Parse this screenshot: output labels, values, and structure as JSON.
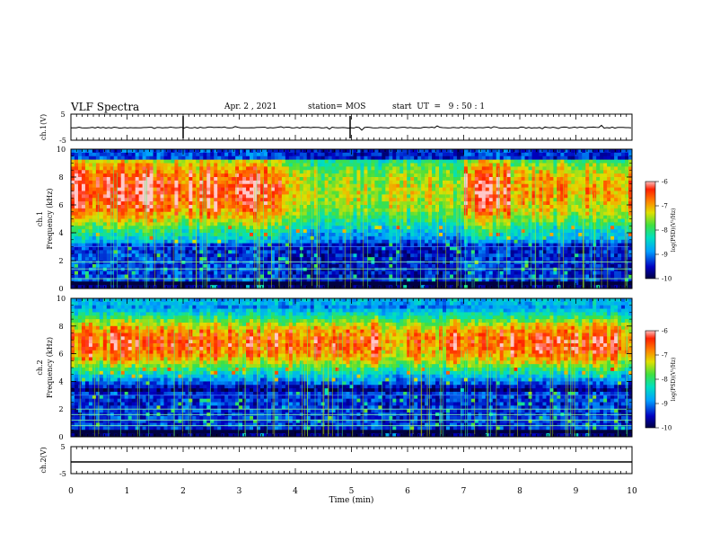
{
  "header": {
    "title": "VLF Spectra",
    "date": "Apr. 2 , 2021",
    "station": "station= MOS",
    "start": "start  UT  =   9 : 50 : 1"
  },
  "chart_data": [
    {
      "type": "line",
      "panel": "waveform-top",
      "ylabel": "ch.1(V)",
      "ylim": [
        -5,
        5
      ],
      "yticks": [
        "5",
        "-5"
      ],
      "level": 0,
      "color": "#000000"
    },
    {
      "type": "heatmap",
      "panel": "spectrogram-ch1",
      "ylabel": "ch.1\nFrequency (kHz)",
      "ylim": [
        0,
        10
      ],
      "yticks": [
        "0",
        "2",
        "4",
        "6",
        "8",
        "10"
      ],
      "colorbar": {
        "label": "log(PSD)(V²/Hz)",
        "range": [
          -10,
          -6
        ],
        "ticks": [
          "-10",
          "-9",
          "-8",
          "-7",
          "-6"
        ]
      },
      "intense_band_khz": [
        4.5,
        9.5
      ],
      "weak_band_khz": [
        0.5,
        2.5
      ],
      "high_activity_min": [
        0,
        3.5
      ],
      "low_activity_min": [
        4.0,
        7.0
      ]
    },
    {
      "type": "heatmap",
      "panel": "spectrogram-ch2",
      "ylabel": "ch.2\nFrequency (kHz)",
      "ylim": [
        0,
        10
      ],
      "yticks": [
        "0",
        "2",
        "4",
        "6",
        "8",
        "10"
      ],
      "colorbar": {
        "label": "log(PSD)(V²/Hz)",
        "range": [
          -10,
          -6
        ],
        "ticks": [
          "-10",
          "-9",
          "-8",
          "-7",
          "-6"
        ]
      },
      "intense_band_khz": [
        5.0,
        8.5
      ]
    },
    {
      "type": "line",
      "panel": "waveform-bottom",
      "ylabel": "ch.2(V)",
      "ylim": [
        -5,
        5
      ],
      "yticks": [
        "5",
        "-5"
      ],
      "level": 0,
      "color": "#000000"
    }
  ],
  "xaxis": {
    "label": "Time (min)",
    "xlim": [
      0,
      10
    ],
    "ticks": [
      "0",
      "1",
      "2",
      "3",
      "4",
      "5",
      "6",
      "7",
      "8",
      "9",
      "10"
    ]
  }
}
